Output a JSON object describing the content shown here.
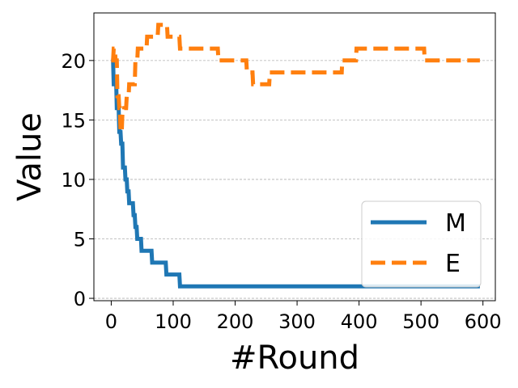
{
  "chart_data": {
    "type": "line",
    "xlabel": "#Round",
    "ylabel": "Value",
    "xlim": [
      -28,
      620
    ],
    "ylim": [
      -0.2,
      24
    ],
    "xticks": [
      0,
      100,
      200,
      300,
      400,
      500,
      600
    ],
    "yticks": [
      0,
      5,
      10,
      15,
      20
    ],
    "grid": "y-dashed",
    "legend_position": "lower-right",
    "series": [
      {
        "name": "M",
        "color": "#1f77b4",
        "style": "solid",
        "points": [
          [
            0,
            20
          ],
          [
            3,
            20
          ],
          [
            4,
            18
          ],
          [
            8,
            18
          ],
          [
            9,
            16
          ],
          [
            12,
            16
          ],
          [
            13,
            14
          ],
          [
            15,
            14
          ],
          [
            16,
            13
          ],
          [
            18,
            13
          ],
          [
            19,
            11
          ],
          [
            22,
            11
          ],
          [
            23,
            10
          ],
          [
            25,
            10
          ],
          [
            26,
            9
          ],
          [
            28,
            9
          ],
          [
            29,
            8
          ],
          [
            35,
            8
          ],
          [
            36,
            7
          ],
          [
            38,
            7
          ],
          [
            39,
            6
          ],
          [
            41,
            6
          ],
          [
            42,
            5
          ],
          [
            48,
            5
          ],
          [
            49,
            4
          ],
          [
            65,
            4
          ],
          [
            66,
            3
          ],
          [
            88,
            3
          ],
          [
            89,
            2
          ],
          [
            110,
            2
          ],
          [
            111,
            1
          ],
          [
            595,
            1
          ]
        ]
      },
      {
        "name": "E",
        "color": "#ff7f0e",
        "style": "dashed",
        "points": [
          [
            0,
            20
          ],
          [
            3,
            20
          ],
          [
            4,
            21
          ],
          [
            6,
            21
          ],
          [
            7,
            20
          ],
          [
            9,
            20
          ],
          [
            10,
            17
          ],
          [
            12,
            17
          ],
          [
            13,
            16
          ],
          [
            14,
            16
          ],
          [
            15,
            14
          ],
          [
            17,
            14
          ],
          [
            18,
            15.5
          ],
          [
            20,
            15.5
          ],
          [
            21,
            16
          ],
          [
            24,
            16
          ],
          [
            25,
            17
          ],
          [
            28,
            17
          ],
          [
            29,
            18
          ],
          [
            38,
            18
          ],
          [
            39,
            20
          ],
          [
            42,
            20
          ],
          [
            43,
            21
          ],
          [
            57,
            21
          ],
          [
            58,
            22
          ],
          [
            75,
            22
          ],
          [
            76,
            23
          ],
          [
            90,
            23
          ],
          [
            91,
            22
          ],
          [
            110,
            22
          ],
          [
            111,
            21
          ],
          [
            172,
            21
          ],
          [
            173,
            20
          ],
          [
            218,
            20
          ],
          [
            219,
            19
          ],
          [
            228,
            19
          ],
          [
            229,
            18
          ],
          [
            255,
            18
          ],
          [
            256,
            19
          ],
          [
            372,
            19
          ],
          [
            373,
            20
          ],
          [
            395,
            20
          ],
          [
            396,
            21
          ],
          [
            505,
            21
          ],
          [
            506,
            20
          ],
          [
            595,
            20
          ]
        ]
      }
    ]
  }
}
